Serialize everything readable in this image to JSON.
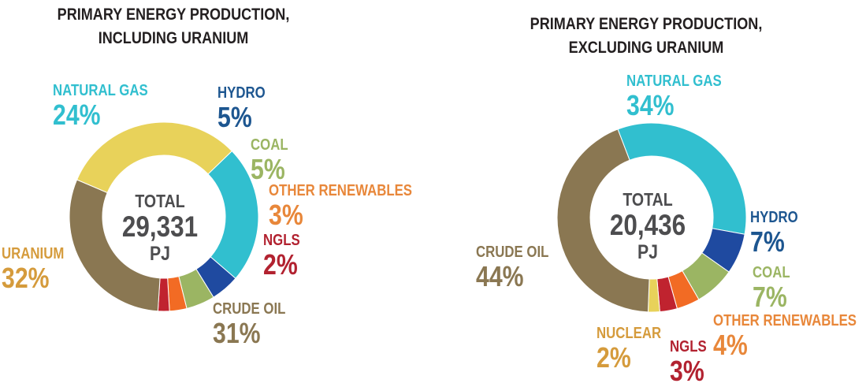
{
  "chart_data": [
    {
      "type": "pie",
      "title": "PRIMARY ENERGY PRODUCTION,\nINCLUDING URANIUM",
      "center_label": "TOTAL",
      "center_value": "29,331",
      "center_unit": "PJ",
      "categories": [
        "NATURAL GAS",
        "HYDRO",
        "COAL",
        "OTHER RENEWABLES",
        "NGLS",
        "CRUDE OIL",
        "URANIUM"
      ],
      "values": [
        24,
        5,
        5,
        3,
        2,
        31,
        32
      ],
      "value_labels": [
        "24%",
        "5%",
        "5%",
        "3%",
        "2%",
        "31%",
        "32%"
      ],
      "colors": [
        "#31bfcf",
        "#1f4aa0",
        "#9bb563",
        "#f26b24",
        "#c0232f",
        "#8a7752",
        "#e8d25a"
      ],
      "label_colors": [
        "#31bfcf",
        "#1d5690",
        "#9bb563",
        "#e8873a",
        "#b22230",
        "#8a7752",
        "#d59b3c"
      ]
    },
    {
      "type": "pie",
      "title": "PRIMARY ENERGY PRODUCTION,\nEXCLUDING URANIUM",
      "center_label": "TOTAL",
      "center_value": "20,436",
      "center_unit": "PJ",
      "categories": [
        "NATURAL GAS",
        "HYDRO",
        "COAL",
        "OTHER RENEWABLES",
        "NGLS",
        "NUCLEAR",
        "CRUDE OIL"
      ],
      "values": [
        34,
        7,
        7,
        4,
        3,
        2,
        44
      ],
      "value_labels": [
        "34%",
        "7%",
        "7%",
        "4%",
        "3%",
        "2%",
        "44%"
      ],
      "colors": [
        "#31bfcf",
        "#1f4aa0",
        "#9bb563",
        "#f26b24",
        "#c0232f",
        "#e8d25a",
        "#8a7752"
      ],
      "label_colors": [
        "#31bfcf",
        "#1d5690",
        "#9bb563",
        "#e8873a",
        "#b22230",
        "#d59b3c",
        "#8a7752"
      ]
    }
  ]
}
